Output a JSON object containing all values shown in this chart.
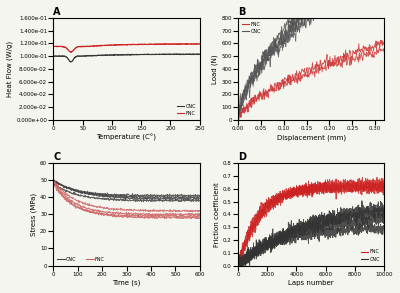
{
  "panel_A": {
    "title": "A",
    "xlabel": "Temperature (C°)",
    "ylabel": "Heat Flow (W/g)",
    "ylim": [
      0.0,
      0.15
    ],
    "xlim": [
      0,
      250
    ],
    "cnc_color": "#333333",
    "fnc_color": "#cc2222"
  },
  "panel_B": {
    "title": "B",
    "xlabel": "Displacement (mm)",
    "ylabel": "Load (N)",
    "xlim": [
      0,
      0.32
    ],
    "ylim": [
      0,
      800
    ],
    "cnc_color": "#555555",
    "fnc_color": "#cc3333"
  },
  "panel_C": {
    "title": "C",
    "xlabel": "Time (s)",
    "ylabel": "Stress (MPa)",
    "xlim": [
      0,
      600
    ],
    "ylim": [
      0,
      60
    ],
    "cnc_color": "#444444",
    "fnc_color": "#cc6666"
  },
  "panel_D": {
    "title": "D",
    "xlabel": "Laps number",
    "ylabel": "Friction coefficient",
    "xlim": [
      0,
      10000
    ],
    "ylim": [
      0,
      0.8
    ],
    "cnc_color": "#333333",
    "fnc_color": "#cc2222"
  },
  "legend_cnc": "CNC",
  "legend_fnc": "FNC"
}
